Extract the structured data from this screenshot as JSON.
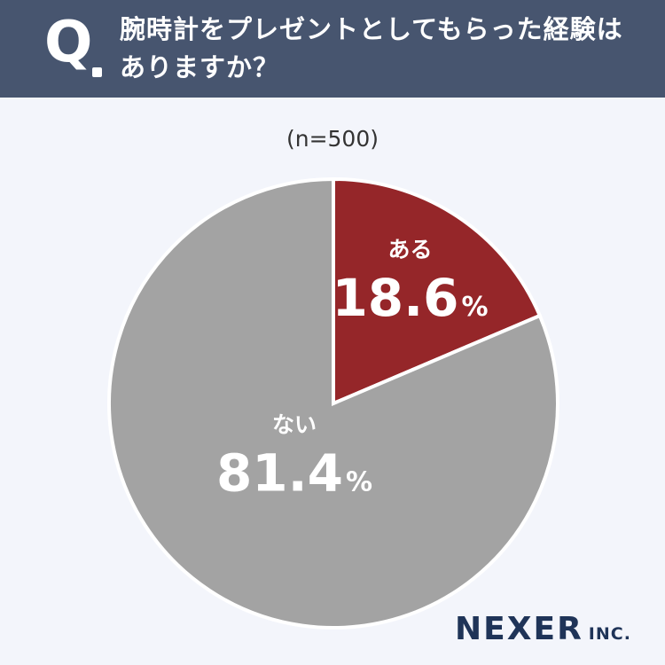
{
  "header": {
    "q_mark": "Q",
    "question_line1": "腕時計をプレゼントとしてもらった経験は",
    "question_line2": "ありますか？"
  },
  "sample_size": "(n=500)",
  "chart_data": {
    "type": "pie",
    "start": "12 o'clock, clockwise",
    "slices": [
      {
        "label": "ある",
        "value": 18.6,
        "display": "18.6",
        "unit": "%",
        "color": "#952629"
      },
      {
        "label": "ない",
        "value": 81.4,
        "display": "81.4",
        "unit": "%",
        "color": "#a3a3a3"
      }
    ]
  },
  "logo": {
    "main": "NEXER",
    "sub": "INC."
  },
  "colors": {
    "header_bg": "#47556f",
    "page_bg": "#f3f5fb",
    "slice_border": "#ffffff",
    "logo": "#1f3458"
  }
}
